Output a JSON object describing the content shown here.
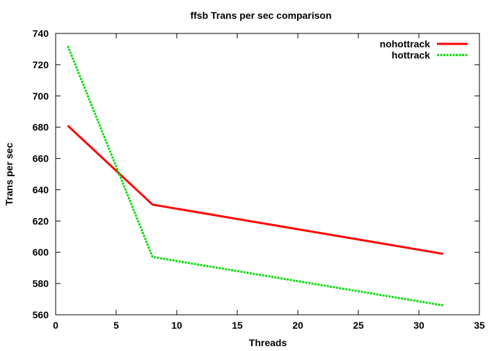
{
  "chart_data": {
    "type": "line",
    "title": "ffsb Trans per sec comparison",
    "xlabel": "Threads",
    "ylabel": "Trans per sec",
    "xlim": [
      0,
      35
    ],
    "ylim": [
      560,
      740
    ],
    "xticks": [
      0,
      5,
      10,
      15,
      20,
      25,
      30,
      35
    ],
    "yticks": [
      560,
      580,
      600,
      620,
      640,
      660,
      680,
      700,
      720,
      740
    ],
    "x": [
      1,
      8,
      32
    ],
    "series": [
      {
        "name": "nohottrack",
        "values": [
          681,
          630.5,
          599
        ],
        "color": "#ff0000",
        "dash": "solid"
      },
      {
        "name": "hottrack",
        "values": [
          732,
          597,
          566
        ],
        "color": "#00dd00",
        "dash": "dashed"
      }
    ],
    "legend": "top-right",
    "grid": false
  }
}
